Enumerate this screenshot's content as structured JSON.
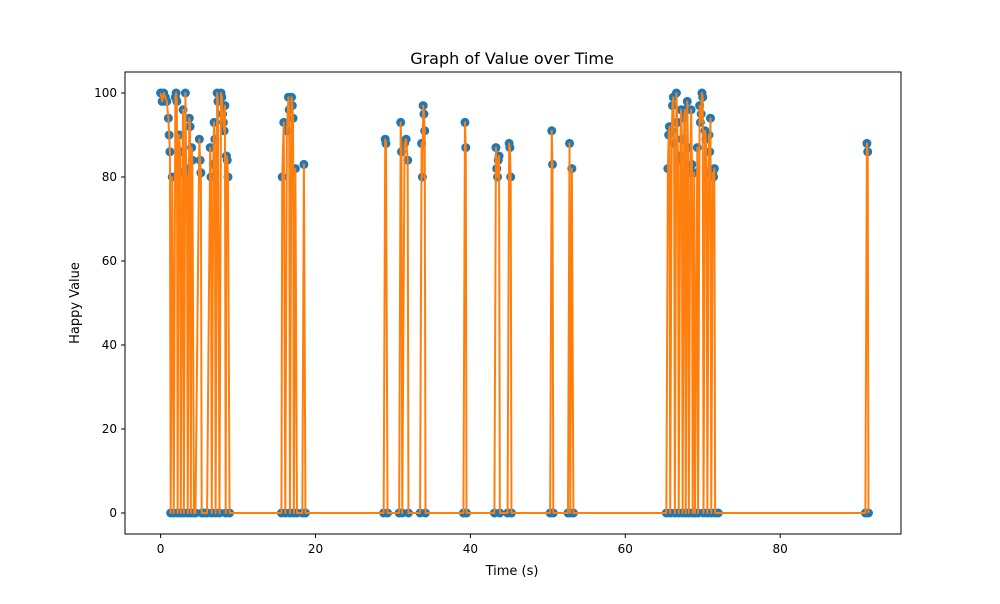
{
  "chart_data": {
    "type": "line",
    "title": "Graph of Value over Time",
    "xlabel": "Time (s)",
    "ylabel": "Happy Value",
    "xlim": [
      -4.6,
      95.6
    ],
    "ylim": [
      -5,
      105
    ],
    "xticks": [
      0,
      20,
      40,
      60,
      80
    ],
    "yticks": [
      0,
      20,
      40,
      60,
      80,
      100
    ],
    "grid": false,
    "legend": "none",
    "colors": {
      "points": "#1f77b4",
      "line": "#ff7f0e"
    },
    "series": [
      {
        "values": [
          [
            0.0,
            100
          ],
          [
            0.2,
            98
          ],
          [
            0.4,
            100
          ],
          [
            0.6,
            99
          ],
          [
            0.8,
            98
          ],
          [
            1.0,
            94
          ],
          [
            1.1,
            90
          ],
          [
            1.2,
            86
          ],
          [
            1.3,
            0
          ],
          [
            1.5,
            80
          ],
          [
            1.7,
            0
          ],
          [
            1.9,
            99
          ],
          [
            2.0,
            100
          ],
          [
            2.1,
            98
          ],
          [
            2.2,
            0
          ],
          [
            2.3,
            81
          ],
          [
            2.4,
            90
          ],
          [
            2.5,
            86
          ],
          [
            2.6,
            0
          ],
          [
            2.8,
            81
          ],
          [
            2.9,
            96
          ],
          [
            3.0,
            0
          ],
          [
            3.2,
            100
          ],
          [
            3.3,
            82
          ],
          [
            3.4,
            80
          ],
          [
            3.5,
            0
          ],
          [
            3.7,
            94
          ],
          [
            3.8,
            92
          ],
          [
            3.9,
            0
          ],
          [
            4.0,
            87
          ],
          [
            4.1,
            84
          ],
          [
            4.3,
            0
          ],
          [
            4.5,
            0
          ],
          [
            5.0,
            89
          ],
          [
            5.1,
            84
          ],
          [
            5.2,
            81
          ],
          [
            5.3,
            0
          ],
          [
            5.6,
            0
          ],
          [
            6.0,
            0
          ],
          [
            6.4,
            87
          ],
          [
            6.5,
            80
          ],
          [
            6.6,
            0
          ],
          [
            6.8,
            83
          ],
          [
            6.9,
            93
          ],
          [
            7.0,
            89
          ],
          [
            7.1,
            0
          ],
          [
            7.3,
            100
          ],
          [
            7.4,
            98
          ],
          [
            7.6,
            0
          ],
          [
            7.8,
            100
          ],
          [
            7.9,
            99
          ],
          [
            8.0,
            95
          ],
          [
            8.1,
            93
          ],
          [
            8.2,
            91
          ],
          [
            8.3,
            97
          ],
          [
            8.4,
            0
          ],
          [
            8.5,
            85
          ],
          [
            8.6,
            84
          ],
          [
            8.7,
            80
          ],
          [
            8.9,
            0
          ],
          [
            15.6,
            0
          ],
          [
            15.7,
            80
          ],
          [
            15.9,
            93
          ],
          [
            16.1,
            0
          ],
          [
            16.3,
            91
          ],
          [
            16.5,
            99
          ],
          [
            16.6,
            96
          ],
          [
            16.7,
            0
          ],
          [
            16.9,
            99
          ],
          [
            17.0,
            97
          ],
          [
            17.1,
            94
          ],
          [
            17.2,
            0
          ],
          [
            17.4,
            82
          ],
          [
            17.6,
            0
          ],
          [
            18.3,
            0
          ],
          [
            18.5,
            83
          ],
          [
            18.7,
            0
          ],
          [
            28.8,
            0
          ],
          [
            29.0,
            89
          ],
          [
            29.1,
            88
          ],
          [
            29.3,
            0
          ],
          [
            30.8,
            0
          ],
          [
            31.0,
            93
          ],
          [
            31.1,
            86
          ],
          [
            31.2,
            0
          ],
          [
            31.5,
            88
          ],
          [
            31.7,
            89
          ],
          [
            31.9,
            84
          ],
          [
            32.0,
            0
          ],
          [
            33.5,
            0
          ],
          [
            33.7,
            88
          ],
          [
            33.8,
            80
          ],
          [
            33.9,
            97
          ],
          [
            34.0,
            95
          ],
          [
            34.1,
            91
          ],
          [
            34.2,
            0
          ],
          [
            39.1,
            0
          ],
          [
            39.3,
            93
          ],
          [
            39.4,
            87
          ],
          [
            39.5,
            0
          ],
          [
            43.1,
            0
          ],
          [
            43.3,
            87
          ],
          [
            43.4,
            82
          ],
          [
            43.5,
            80
          ],
          [
            43.6,
            84
          ],
          [
            43.7,
            85
          ],
          [
            43.8,
            0
          ],
          [
            44.8,
            0
          ],
          [
            45.0,
            88
          ],
          [
            45.1,
            87
          ],
          [
            45.2,
            80
          ],
          [
            45.3,
            0
          ],
          [
            50.3,
            0
          ],
          [
            50.5,
            91
          ],
          [
            50.6,
            83
          ],
          [
            50.7,
            0
          ],
          [
            52.6,
            0
          ],
          [
            52.8,
            88
          ],
          [
            52.9,
            0
          ],
          [
            53.1,
            82
          ],
          [
            53.3,
            0
          ],
          [
            65.3,
            0
          ],
          [
            65.5,
            82
          ],
          [
            65.6,
            90
          ],
          [
            65.7,
            92
          ],
          [
            65.8,
            0
          ],
          [
            66.0,
            91
          ],
          [
            66.1,
            97
          ],
          [
            66.2,
            99
          ],
          [
            66.3,
            88
          ],
          [
            66.4,
            0
          ],
          [
            66.6,
            100
          ],
          [
            66.7,
            93
          ],
          [
            66.8,
            84
          ],
          [
            66.9,
            0
          ],
          [
            67.1,
            85
          ],
          [
            67.2,
            96
          ],
          [
            67.3,
            89
          ],
          [
            67.4,
            0
          ],
          [
            67.6,
            94
          ],
          [
            67.7,
            96
          ],
          [
            67.8,
            0
          ],
          [
            68.0,
            98
          ],
          [
            68.1,
            87
          ],
          [
            68.2,
            0
          ],
          [
            68.4,
            81
          ],
          [
            68.5,
            96
          ],
          [
            68.6,
            83
          ],
          [
            68.7,
            0
          ],
          [
            68.9,
            81
          ],
          [
            69.0,
            0
          ],
          [
            69.3,
            87
          ],
          [
            69.4,
            0
          ],
          [
            69.6,
            97
          ],
          [
            69.7,
            93
          ],
          [
            69.8,
            95
          ],
          [
            69.9,
            100
          ],
          [
            70.0,
            99
          ],
          [
            70.1,
            0
          ],
          [
            70.3,
            91
          ],
          [
            70.4,
            89
          ],
          [
            70.5,
            81
          ],
          [
            70.6,
            0
          ],
          [
            70.8,
            90
          ],
          [
            70.9,
            86
          ],
          [
            71.0,
            94
          ],
          [
            71.1,
            0
          ],
          [
            71.3,
            81
          ],
          [
            71.4,
            80
          ],
          [
            71.5,
            82
          ],
          [
            71.6,
            0
          ],
          [
            72.0,
            0
          ],
          [
            91.0,
            0
          ],
          [
            91.2,
            88
          ],
          [
            91.3,
            86
          ],
          [
            91.4,
            0
          ]
        ]
      }
    ]
  }
}
